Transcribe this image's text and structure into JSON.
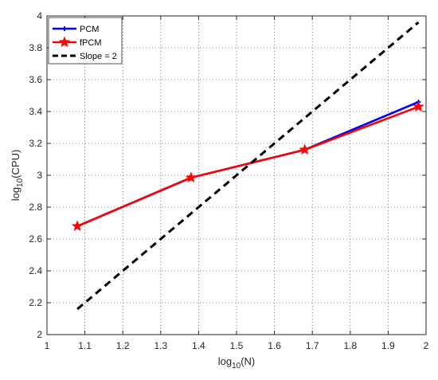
{
  "chart_data": {
    "type": "line",
    "title": "",
    "xlabel": "log",
    "xlabel_sub": "10",
    "xlabel_arg": "(N)",
    "ylabel": "log",
    "ylabel_sub": "10",
    "ylabel_arg": "(CPU)",
    "xlim": [
      1,
      2
    ],
    "ylim": [
      2,
      4
    ],
    "x_ticks": [
      1,
      1.1,
      1.2,
      1.3,
      1.4,
      1.5,
      1.6,
      1.7,
      1.8,
      1.9,
      2
    ],
    "x_tick_labels": [
      "1",
      "1.1",
      "1.2",
      "1.3",
      "1.4",
      "1.5",
      "1.6",
      "1.7",
      "1.8",
      "1.9",
      "2"
    ],
    "y_ticks": [
      2,
      2.2,
      2.4,
      2.6,
      2.8,
      3,
      3.2,
      3.4,
      3.6,
      3.8,
      4
    ],
    "y_tick_labels": [
      "2",
      "2.2",
      "2.4",
      "2.6",
      "2.8",
      "3",
      "3.2",
      "3.4",
      "3.6",
      "3.8",
      "4"
    ],
    "grid": true,
    "legend_position": "top-left",
    "series": [
      {
        "name": "PCM",
        "color": "#0000ff",
        "marker": "plus",
        "style": "solid",
        "x": [
          1.08,
          1.38,
          1.68,
          1.98
        ],
        "y": [
          2.68,
          2.985,
          3.16,
          3.46
        ]
      },
      {
        "name": "fPCM",
        "color": "#ff0000",
        "marker": "star",
        "style": "solid",
        "x": [
          1.08,
          1.38,
          1.68,
          1.98
        ],
        "y": [
          2.68,
          2.985,
          3.16,
          3.43
        ]
      },
      {
        "name": "Slope = 2",
        "color": "#000000",
        "marker": "none",
        "style": "dashed",
        "x": [
          1.08,
          1.98
        ],
        "y": [
          2.16,
          3.96
        ]
      }
    ]
  }
}
